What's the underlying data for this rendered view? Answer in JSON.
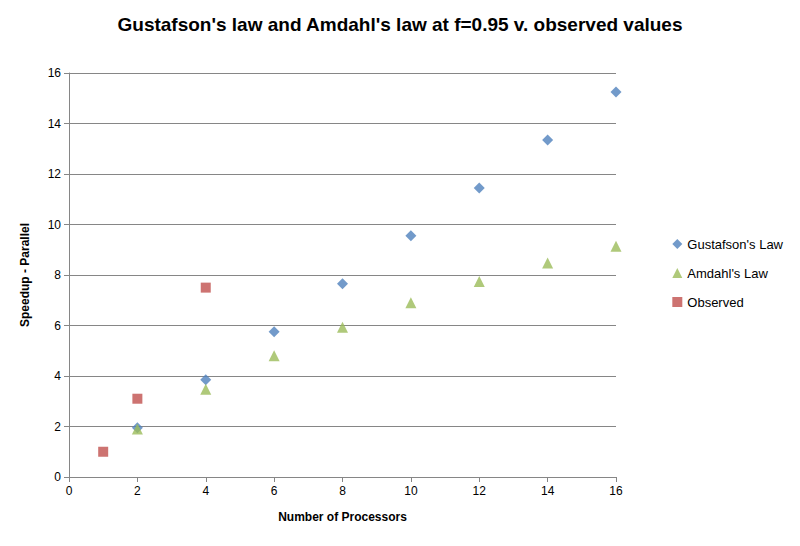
{
  "chart_data": {
    "type": "scatter",
    "title": "Gustafson's law and Amdahl's law at f=0.95 v. observed values",
    "x_label": "Number of Processors",
    "y_label": "Speedup - Parallel",
    "xlim": [
      0,
      16
    ],
    "xticks": [
      0,
      2,
      4,
      6,
      8,
      10,
      12,
      14,
      16
    ],
    "ylim": [
      0,
      16
    ],
    "yticks": [
      0,
      2,
      4,
      6,
      8,
      10,
      12,
      14,
      16
    ],
    "grid": true,
    "legend": "right",
    "series": [
      {
        "name": "Gustafson's Law",
        "color": "#4f81bd",
        "marker": "diamond",
        "x": [
          2,
          4,
          6,
          8,
          10,
          12,
          14,
          16
        ],
        "values": [
          1.95,
          3.85,
          5.75,
          7.65,
          9.55,
          11.45,
          13.35,
          15.25
        ]
      },
      {
        "name": "Amdahl's Law",
        "color": "#9bbb59",
        "marker": "triangle",
        "x": [
          2,
          4,
          6,
          8,
          10,
          12,
          14,
          16
        ],
        "values": [
          1.9,
          3.48,
          4.8,
          5.93,
          6.9,
          7.74,
          8.48,
          9.14
        ]
      },
      {
        "name": "Observed",
        "color": "#c0504d",
        "marker": "square",
        "x": [
          1,
          2,
          4
        ],
        "values": [
          1.0,
          3.1,
          7.5
        ]
      }
    ]
  }
}
